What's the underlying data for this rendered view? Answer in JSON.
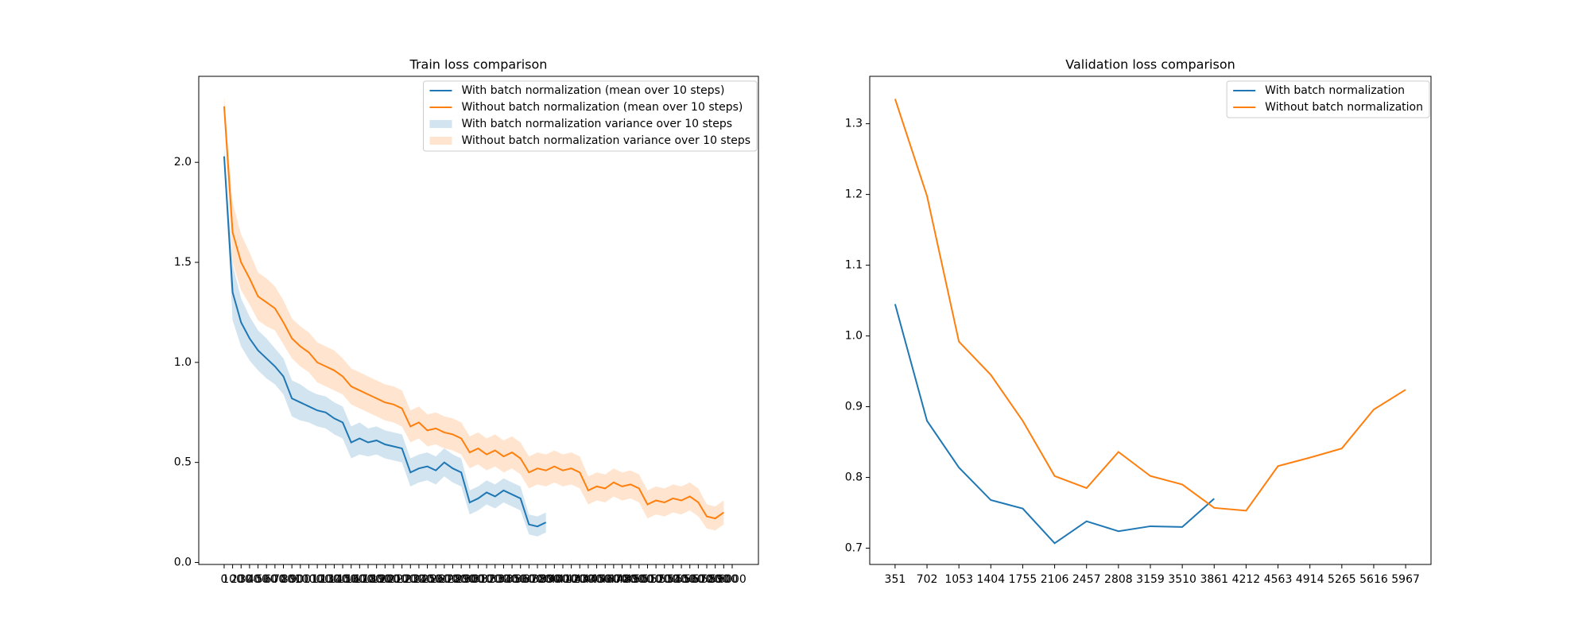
{
  "chart_data": [
    {
      "type": "line",
      "title": "Train loss comparison",
      "legend": "upper right",
      "xlim": [
        -300,
        6310
      ],
      "ylim": [
        -0.01,
        2.43
      ],
      "xticks": [
        0,
        100,
        200,
        300,
        400,
        500,
        600,
        700,
        800,
        900,
        1000,
        1100,
        1200,
        1300,
        1400,
        1500,
        1600,
        1700,
        1800,
        1900,
        2000,
        2100,
        2200,
        2300,
        2400,
        2500,
        2600,
        2700,
        2800,
        2900,
        3000,
        3100,
        3200,
        3300,
        3400,
        3500,
        3600,
        3700,
        3800,
        3900,
        4000,
        4100,
        4200,
        4300,
        4400,
        4500,
        4600,
        4700,
        4800,
        4900,
        5000,
        5100,
        5200,
        5300,
        5400,
        5500,
        5600,
        5700,
        5800,
        5900,
        6000
      ],
      "yticks": [
        {
          "value": 0,
          "label": "0.0"
        },
        0.5,
        {
          "value": 1,
          "label": "1.0"
        },
        1.5,
        {
          "value": 2,
          "label": "2.0"
        }
      ],
      "series": [
        {
          "name": "With batch normalization (mean over 10 steps)",
          "color": "#1f77b4",
          "x": [
            0,
            100,
            200,
            300,
            400,
            500,
            600,
            700,
            800,
            900,
            1000,
            1100,
            1200,
            1300,
            1400,
            1500,
            1600,
            1700,
            1800,
            1900,
            2000,
            2100,
            2200,
            2300,
            2400,
            2500,
            2600,
            2700,
            2800,
            2900,
            3000,
            3100,
            3200,
            3300,
            3400,
            3500,
            3600,
            3700,
            3800
          ],
          "values": [
            2.03,
            1.35,
            1.2,
            1.12,
            1.06,
            1.02,
            0.98,
            0.93,
            0.82,
            0.8,
            0.78,
            0.76,
            0.75,
            0.72,
            0.7,
            0.6,
            0.62,
            0.6,
            0.61,
            0.59,
            0.58,
            0.57,
            0.45,
            0.47,
            0.48,
            0.46,
            0.5,
            0.47,
            0.45,
            0.3,
            0.32,
            0.35,
            0.33,
            0.36,
            0.34,
            0.32,
            0.19,
            0.18,
            0.2
          ],
          "band": {
            "name": "With batch normalization variance over 10 steps",
            "spread": [
              0.05,
              0.14,
              0.12,
              0.11,
              0.1,
              0.1,
              0.09,
              0.09,
              0.09,
              0.09,
              0.08,
              0.08,
              0.08,
              0.08,
              0.08,
              0.08,
              0.08,
              0.07,
              0.07,
              0.07,
              0.07,
              0.07,
              0.07,
              0.07,
              0.07,
              0.07,
              0.07,
              0.07,
              0.07,
              0.06,
              0.06,
              0.06,
              0.06,
              0.06,
              0.06,
              0.06,
              0.05,
              0.05,
              0.05
            ]
          }
        },
        {
          "name": "Without batch normalization (mean over 10 steps)",
          "color": "#ff7f0e",
          "x": [
            0,
            100,
            200,
            300,
            400,
            500,
            600,
            700,
            800,
            900,
            1000,
            1100,
            1200,
            1300,
            1400,
            1500,
            1600,
            1700,
            1800,
            1900,
            2000,
            2100,
            2200,
            2300,
            2400,
            2500,
            2600,
            2700,
            2800,
            2900,
            3000,
            3100,
            3200,
            3300,
            3400,
            3500,
            3600,
            3700,
            3800,
            3900,
            4000,
            4100,
            4200,
            4300,
            4400,
            4500,
            4600,
            4700,
            4800,
            4900,
            5000,
            5100,
            5200,
            5300,
            5400,
            5500,
            5600,
            5700,
            5800,
            5900
          ],
          "values": [
            2.28,
            1.65,
            1.5,
            1.42,
            1.33,
            1.3,
            1.27,
            1.2,
            1.12,
            1.08,
            1.05,
            1.0,
            0.98,
            0.96,
            0.93,
            0.88,
            0.86,
            0.84,
            0.82,
            0.8,
            0.79,
            0.77,
            0.68,
            0.7,
            0.66,
            0.67,
            0.65,
            0.64,
            0.62,
            0.55,
            0.57,
            0.54,
            0.56,
            0.53,
            0.55,
            0.52,
            0.45,
            0.47,
            0.46,
            0.48,
            0.46,
            0.47,
            0.45,
            0.36,
            0.38,
            0.37,
            0.4,
            0.38,
            0.39,
            0.37,
            0.29,
            0.31,
            0.3,
            0.32,
            0.31,
            0.33,
            0.3,
            0.23,
            0.22,
            0.25
          ],
          "band": {
            "name": "Without batch normalization variance over 10 steps",
            "spread": [
              0.05,
              0.15,
              0.14,
              0.13,
              0.12,
              0.12,
              0.11,
              0.11,
              0.1,
              0.1,
              0.1,
              0.1,
              0.1,
              0.1,
              0.09,
              0.09,
              0.09,
              0.09,
              0.09,
              0.09,
              0.09,
              0.09,
              0.08,
              0.08,
              0.08,
              0.08,
              0.08,
              0.08,
              0.08,
              0.08,
              0.08,
              0.08,
              0.08,
              0.08,
              0.08,
              0.08,
              0.08,
              0.08,
              0.08,
              0.08,
              0.08,
              0.08,
              0.08,
              0.07,
              0.07,
              0.07,
              0.07,
              0.07,
              0.07,
              0.07,
              0.07,
              0.07,
              0.07,
              0.07,
              0.07,
              0.07,
              0.07,
              0.06,
              0.06,
              0.06
            ]
          }
        }
      ]
    },
    {
      "type": "line",
      "title": "Validation loss comparison",
      "legend": "upper right",
      "xlim": [
        72,
        6246
      ],
      "ylim": [
        0.677,
        1.367
      ],
      "xticks": [
        351,
        702,
        1053,
        1404,
        1755,
        2106,
        2457,
        2808,
        3159,
        3510,
        3861,
        4212,
        4563,
        4914,
        5265,
        5616,
        5967
      ],
      "yticks": [
        0.7,
        0.8,
        0.9,
        {
          "value": 1,
          "label": "1.0"
        },
        1.1,
        1.2,
        1.3
      ],
      "series": [
        {
          "name": "With batch normalization",
          "color": "#1f77b4",
          "x": [
            351,
            702,
            1053,
            1404,
            1755,
            2106,
            2457,
            2808,
            3159,
            3510,
            3861
          ],
          "values": [
            1.045,
            0.88,
            0.814,
            0.768,
            0.756,
            0.707,
            0.738,
            0.724,
            0.731,
            0.73,
            0.77
          ]
        },
        {
          "name": "Without batch normalization",
          "color": "#ff7f0e",
          "x": [
            351,
            702,
            1053,
            1404,
            1755,
            2106,
            2457,
            2808,
            3159,
            3510,
            3861,
            4212,
            4563,
            4914,
            5265,
            5616,
            5967
          ],
          "values": [
            1.335,
            1.198,
            0.992,
            0.945,
            0.88,
            0.802,
            0.785,
            0.836,
            0.802,
            0.79,
            0.757,
            0.753,
            0.816,
            0.828,
            0.841,
            0.896,
            0.924
          ]
        }
      ]
    }
  ]
}
